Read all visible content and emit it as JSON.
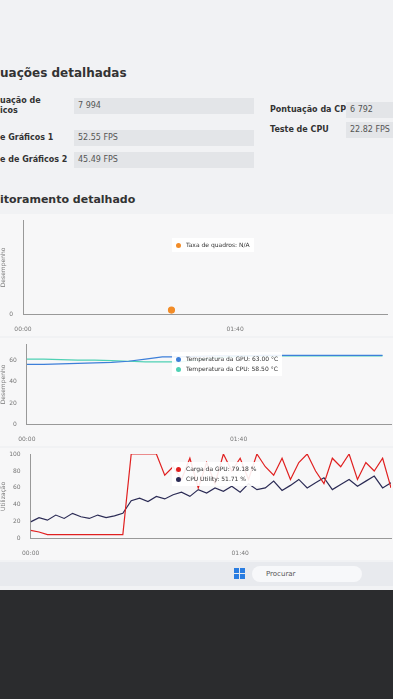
{
  "section_title": "uações detalhadas",
  "scores_left": [
    {
      "label": [
        "uação de",
        "icos"
      ],
      "value": "7 994"
    },
    {
      "label": [
        "e Gráficos 1"
      ],
      "value": "52.55 FPS"
    },
    {
      "label": [
        "e de Gráficos 2"
      ],
      "value": "45.49 FPS"
    }
  ],
  "scores_right": [
    {
      "label": "Pontuação da CPU",
      "value": "6 792"
    },
    {
      "label": "Teste de CPU",
      "value": "22.82 FPS"
    }
  ],
  "monitor_title": "itoramento detalhado",
  "taskbar": {
    "search": "Procurar"
  },
  "chart_data": [
    {
      "type": "line",
      "y_label": "Desempenho",
      "x": [
        70
      ],
      "xlim": [
        0,
        172
      ],
      "xticks": [
        {
          "value": 0,
          "label": "00:00"
        },
        {
          "value": 100,
          "label": "01:40"
        }
      ],
      "ylim": [
        0,
        100
      ],
      "yticks": [
        0
      ],
      "grid": false,
      "series": [
        {
          "name": "Taxa de quadros: N/A",
          "color": "#f28c28",
          "marker": "circle",
          "values": [
            5
          ]
        }
      ]
    },
    {
      "type": "line",
      "y_label": "Desempenho",
      "x": [
        0,
        8,
        16,
        24,
        32,
        40,
        48,
        56,
        64,
        72,
        80,
        88,
        96,
        104,
        112,
        120,
        128,
        136,
        144,
        152,
        160,
        168
      ],
      "xlim": [
        0,
        172
      ],
      "xticks": [
        {
          "value": 0,
          "label": "00:00"
        },
        {
          "value": 100,
          "label": "01:40"
        }
      ],
      "ylim": [
        0,
        75
      ],
      "yticks": [
        0,
        20,
        40,
        60
      ],
      "grid": false,
      "series": [
        {
          "name": "Temperatura da GPU: 63.00 °C",
          "color": "#3d7fd9",
          "marker": "none",
          "values": [
            56,
            56,
            56.5,
            57,
            57.5,
            58,
            59,
            61,
            63,
            63,
            63.5,
            64,
            64,
            64,
            64.5,
            64.5,
            64.5,
            64.5,
            64.5,
            64.5,
            64.5,
            64.5
          ]
        },
        {
          "name": "Temperatura da CPU: 58.50 °C",
          "color": "#4fd1b4",
          "marker": "none",
          "values": [
            61,
            61,
            60.5,
            60,
            60,
            59.5,
            59,
            58.5,
            58.5,
            58.5,
            60,
            62,
            63,
            64,
            64,
            64,
            64,
            64,
            64,
            64,
            64,
            64
          ]
        }
      ]
    },
    {
      "type": "line",
      "y_label": "Utilização",
      "x": [
        0,
        4,
        8,
        12,
        16,
        20,
        24,
        28,
        32,
        36,
        40,
        44,
        48,
        52,
        56,
        60,
        64,
        68,
        72,
        76,
        80,
        84,
        88,
        92,
        96,
        100,
        104,
        108,
        112,
        116,
        120,
        124,
        128,
        132,
        136,
        140,
        144,
        148,
        152,
        156,
        160,
        164,
        168,
        172
      ],
      "xlim": [
        0,
        172
      ],
      "xticks": [
        {
          "value": 0,
          "label": "00:00"
        },
        {
          "value": 100,
          "label": "01:40"
        }
      ],
      "ylim": [
        0,
        100
      ],
      "yticks": [
        0,
        20,
        40,
        60,
        80,
        100
      ],
      "grid": false,
      "series": [
        {
          "name": "Carga da GPU: 79.18 %",
          "color": "#e02020",
          "marker": "none",
          "values": [
            10,
            8,
            5,
            5,
            5,
            5,
            5,
            5,
            5,
            5,
            5,
            5,
            100,
            100,
            100,
            100,
            75,
            85,
            70,
            95,
            60,
            90,
            65,
            100,
            80,
            95,
            70,
            100,
            85,
            75,
            95,
            70,
            90,
            100,
            80,
            65,
            95,
            85,
            100,
            70,
            90,
            80,
            95,
            60
          ]
        },
        {
          "name": "CPU Utility: 51.71 %",
          "color": "#2b2b55",
          "marker": "none",
          "values": [
            20,
            25,
            22,
            28,
            24,
            30,
            26,
            24,
            28,
            25,
            27,
            30,
            45,
            48,
            44,
            50,
            47,
            52,
            55,
            50,
            58,
            54,
            60,
            56,
            62,
            55,
            65,
            58,
            60,
            68,
            57,
            63,
            70,
            60,
            66,
            72,
            58,
            64,
            70,
            62,
            68,
            74,
            60,
            66
          ]
        }
      ]
    }
  ]
}
